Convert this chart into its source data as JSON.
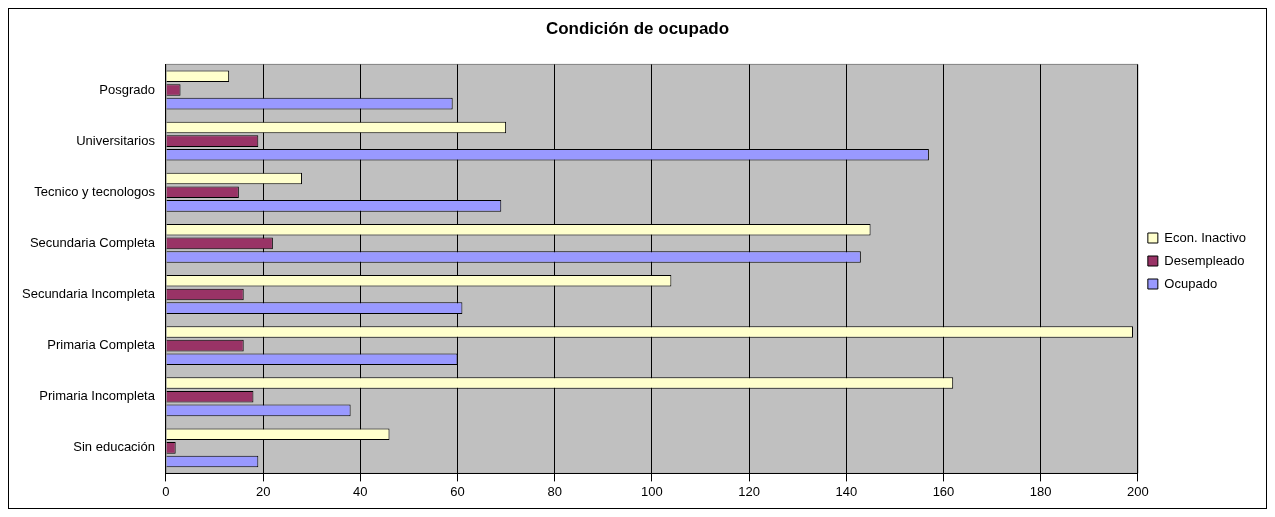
{
  "chart_data": {
    "type": "bar",
    "orientation": "horizontal",
    "title": "Condición de ocupado",
    "categories": [
      "Posgrado",
      "Universitarios",
      "Tecnico y tecnologos",
      "Secundaria Completa",
      "Secundaria Incompleta",
      "Primaria Completa",
      "Primaria Incompleta",
      "Sin educación"
    ],
    "series": [
      {
        "name": "Econ. Inactivo",
        "color": "#ffffcc",
        "values": [
          13,
          70,
          28,
          145,
          104,
          199,
          162,
          46
        ]
      },
      {
        "name": "Desempleado",
        "color": "#993366",
        "values": [
          3,
          19,
          15,
          22,
          16,
          16,
          18,
          2
        ]
      },
      {
        "name": "Ocupado",
        "color": "#9999ff",
        "values": [
          59,
          157,
          69,
          143,
          61,
          60,
          38,
          19
        ]
      }
    ],
    "xlim": [
      0,
      200
    ],
    "xticks": [
      0,
      20,
      40,
      60,
      80,
      100,
      120,
      140,
      160,
      180,
      200
    ],
    "grid": "x",
    "legend": "right"
  }
}
